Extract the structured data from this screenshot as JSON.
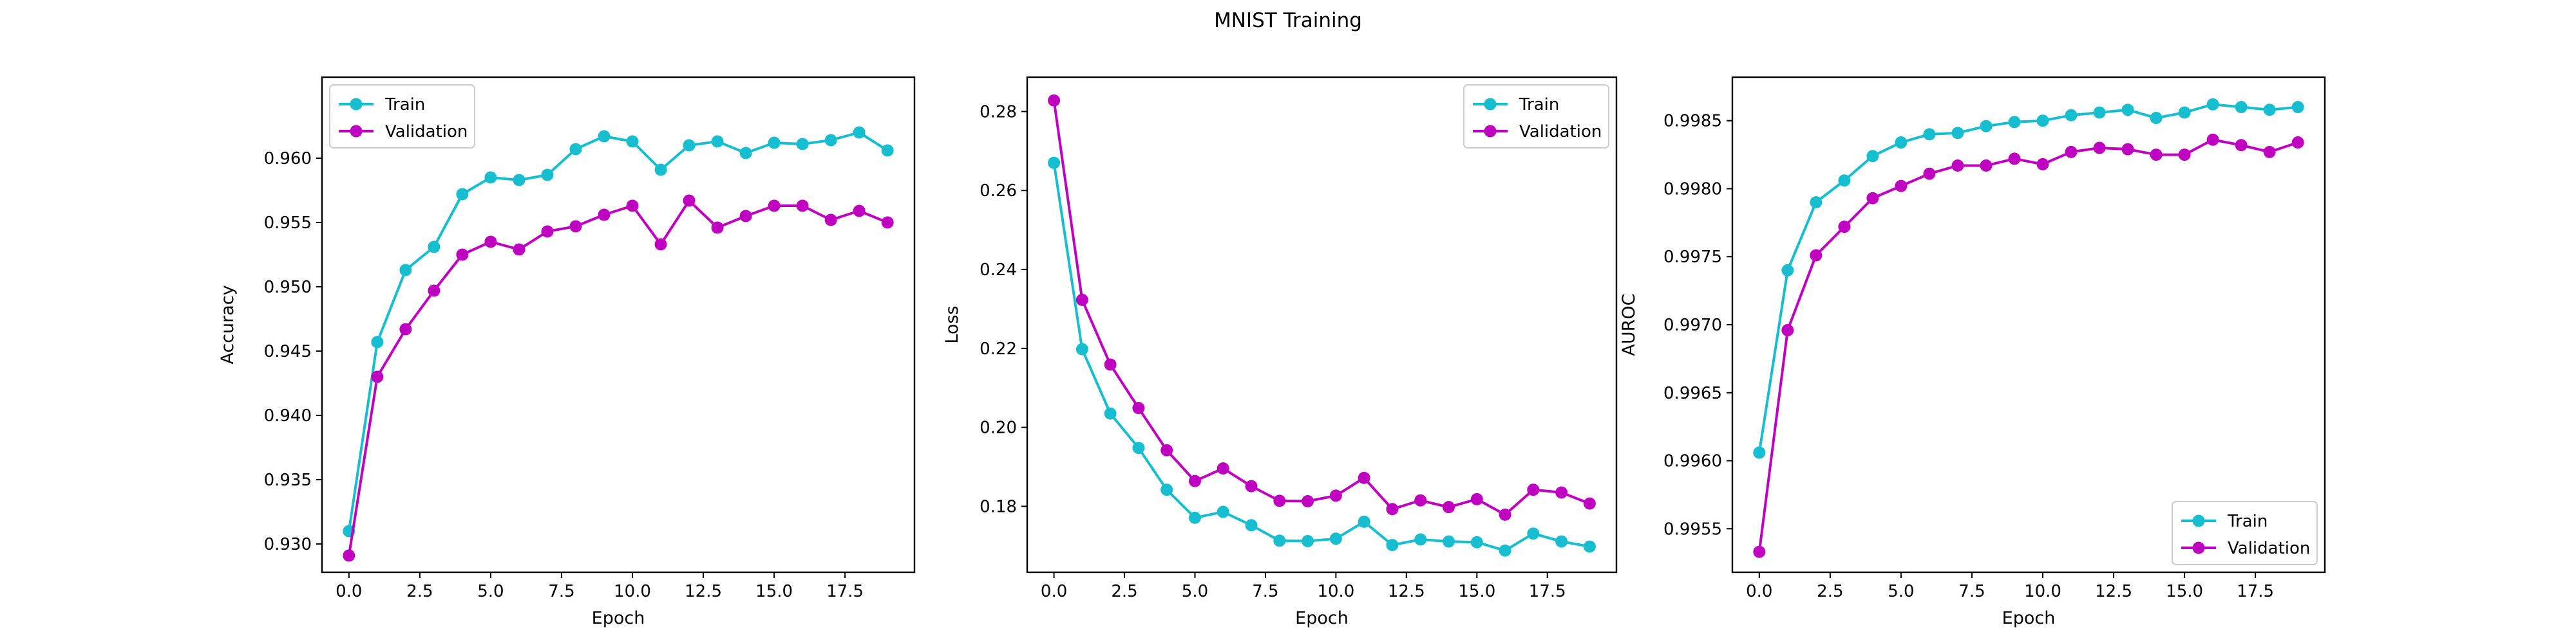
{
  "figure_title": "MNIST Training",
  "colors": {
    "train": "#17becf",
    "validation": "#c000c0"
  },
  "chart_data": [
    {
      "type": "line",
      "title": "",
      "xlabel": "Epoch",
      "ylabel": "Accuracy",
      "xlim": [
        -0.95,
        19.95
      ],
      "ylim": [
        0.9278,
        0.9663
      ],
      "xticks": [
        0.0,
        2.5,
        5.0,
        7.5,
        10.0,
        12.5,
        15.0,
        17.5
      ],
      "yticks": [
        0.93,
        0.935,
        0.94,
        0.945,
        0.95,
        0.955,
        0.96
      ],
      "tick_decimals": 3,
      "grid": false,
      "legend_position": "upper left",
      "x": [
        0,
        1,
        2,
        3,
        4,
        5,
        6,
        7,
        8,
        9,
        10,
        11,
        12,
        13,
        14,
        15,
        16,
        17,
        18,
        19
      ],
      "series": [
        {
          "name": "Train",
          "color": "#17becf",
          "values": [
            0.931,
            0.9457,
            0.9513,
            0.9531,
            0.9572,
            0.9585,
            0.9583,
            0.9587,
            0.9607,
            0.9617,
            0.9613,
            0.9591,
            0.961,
            0.9613,
            0.9604,
            0.9612,
            0.9611,
            0.9614,
            0.962,
            0.9606
          ]
        },
        {
          "name": "Validation",
          "color": "#c000c0",
          "values": [
            0.9291,
            0.943,
            0.9467,
            0.9497,
            0.9525,
            0.9535,
            0.9529,
            0.9543,
            0.9547,
            0.9556,
            0.9563,
            0.9533,
            0.9567,
            0.9546,
            0.9555,
            0.9563,
            0.9563,
            0.9552,
            0.9559,
            0.955
          ]
        }
      ]
    },
    {
      "type": "line",
      "title": "",
      "xlabel": "Epoch",
      "ylabel": "Loss",
      "xlim": [
        -0.95,
        19.95
      ],
      "ylim": [
        0.1633,
        0.2887
      ],
      "xticks": [
        0.0,
        2.5,
        5.0,
        7.5,
        10.0,
        12.5,
        15.0,
        17.5
      ],
      "yticks": [
        0.18,
        0.2,
        0.22,
        0.24,
        0.26,
        0.28
      ],
      "tick_decimals": 2,
      "grid": false,
      "legend_position": "upper right",
      "x": [
        0,
        1,
        2,
        3,
        4,
        5,
        6,
        7,
        8,
        9,
        10,
        11,
        12,
        13,
        14,
        15,
        16,
        17,
        18,
        19
      ],
      "series": [
        {
          "name": "Train",
          "color": "#17becf",
          "values": [
            0.267,
            0.2198,
            0.2035,
            0.1948,
            0.1842,
            0.1771,
            0.1786,
            0.1752,
            0.1713,
            0.1712,
            0.1718,
            0.1761,
            0.1702,
            0.1716,
            0.1711,
            0.1709,
            0.1688,
            0.1731,
            0.1711,
            0.1698
          ]
        },
        {
          "name": "Validation",
          "color": "#c000c0",
          "values": [
            0.2828,
            0.2323,
            0.2159,
            0.2049,
            0.1942,
            0.1864,
            0.1896,
            0.1851,
            0.1814,
            0.1813,
            0.1827,
            0.1872,
            0.1793,
            0.1815,
            0.1798,
            0.1818,
            0.1779,
            0.1842,
            0.1835,
            0.1807
          ]
        }
      ]
    },
    {
      "type": "line",
      "title": "",
      "xlabel": "Epoch",
      "ylabel": "AUROC",
      "xlim": [
        -0.95,
        19.95
      ],
      "ylim": [
        0.99518,
        0.99882
      ],
      "xticks": [
        0.0,
        2.5,
        5.0,
        7.5,
        10.0,
        12.5,
        15.0,
        17.5
      ],
      "yticks": [
        0.9955,
        0.996,
        0.9965,
        0.997,
        0.9975,
        0.998,
        0.9985
      ],
      "tick_decimals": 4,
      "grid": false,
      "legend_position": "lower right",
      "x": [
        0,
        1,
        2,
        3,
        4,
        5,
        6,
        7,
        8,
        9,
        10,
        11,
        12,
        13,
        14,
        15,
        16,
        17,
        18,
        19
      ],
      "series": [
        {
          "name": "Train",
          "color": "#17becf",
          "values": [
            0.99606,
            0.9974,
            0.9979,
            0.99806,
            0.99824,
            0.99834,
            0.9984,
            0.99841,
            0.99846,
            0.99849,
            0.9985,
            0.99854,
            0.99856,
            0.99858,
            0.99852,
            0.99856,
            0.99862,
            0.9986,
            0.99858,
            0.9986
          ]
        },
        {
          "name": "Validation",
          "color": "#c000c0",
          "values": [
            0.99533,
            0.99696,
            0.99751,
            0.99772,
            0.99793,
            0.99802,
            0.99811,
            0.99817,
            0.99817,
            0.99822,
            0.99818,
            0.99827,
            0.9983,
            0.99829,
            0.99825,
            0.99825,
            0.99836,
            0.99832,
            0.99827,
            0.99834
          ]
        }
      ]
    }
  ]
}
